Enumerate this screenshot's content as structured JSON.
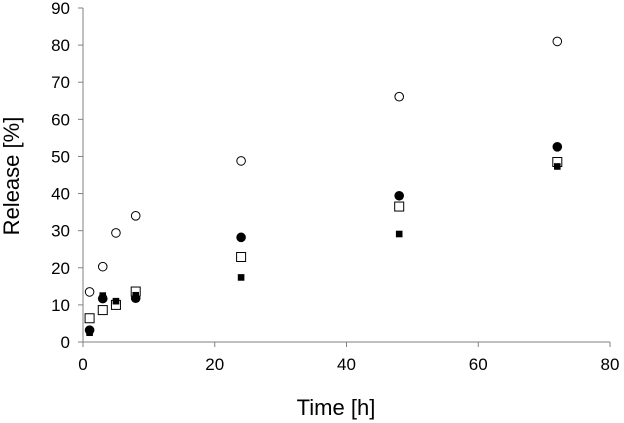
{
  "chart_data": {
    "type": "scatter",
    "title": "",
    "xlabel": "Time [h]",
    "ylabel": "Release [%]",
    "xlim": [
      0,
      80
    ],
    "ylim": [
      0,
      90
    ],
    "x_ticks": [
      "0",
      "20",
      "40",
      "60",
      "80"
    ],
    "y_ticks": [
      "0",
      "10",
      "20",
      "30",
      "40",
      "50",
      "60",
      "70",
      "80",
      "90"
    ],
    "grid": false,
    "legend": "none",
    "series": [
      {
        "marker": "open-circle",
        "color": "#000000",
        "points": [
          {
            "x": 1,
            "y": 13.5
          },
          {
            "x": 3,
            "y": 20.3
          },
          {
            "x": 5,
            "y": 29.4
          },
          {
            "x": 8,
            "y": 34.0
          },
          {
            "x": 24,
            "y": 48.8
          },
          {
            "x": 48,
            "y": 66.1
          },
          {
            "x": 72,
            "y": 81.0
          }
        ]
      },
      {
        "marker": "filled-circle",
        "color": "#000000",
        "points": [
          {
            "x": 1,
            "y": 3.2
          },
          {
            "x": 3,
            "y": 11.7
          },
          {
            "x": 5,
            "y": 10.3
          },
          {
            "x": 8,
            "y": 11.8
          },
          {
            "x": 24,
            "y": 28.2
          },
          {
            "x": 48,
            "y": 39.4
          },
          {
            "x": 72,
            "y": 52.6
          }
        ]
      },
      {
        "marker": "open-square",
        "color": "#000000",
        "points": [
          {
            "x": 1,
            "y": 6.4
          },
          {
            "x": 3,
            "y": 8.6
          },
          {
            "x": 5,
            "y": 10.0
          },
          {
            "x": 8,
            "y": 13.6
          },
          {
            "x": 24,
            "y": 22.9
          },
          {
            "x": 48,
            "y": 36.5
          },
          {
            "x": 72,
            "y": 48.5
          }
        ]
      },
      {
        "marker": "filled-square",
        "color": "#000000",
        "points": [
          {
            "x": 1,
            "y": 2.5
          },
          {
            "x": 3,
            "y": 12.5
          },
          {
            "x": 5,
            "y": 11.0
          },
          {
            "x": 8,
            "y": 12.6
          },
          {
            "x": 24,
            "y": 17.4
          },
          {
            "x": 48,
            "y": 29.1
          },
          {
            "x": 72,
            "y": 47.3
          }
        ]
      }
    ]
  }
}
